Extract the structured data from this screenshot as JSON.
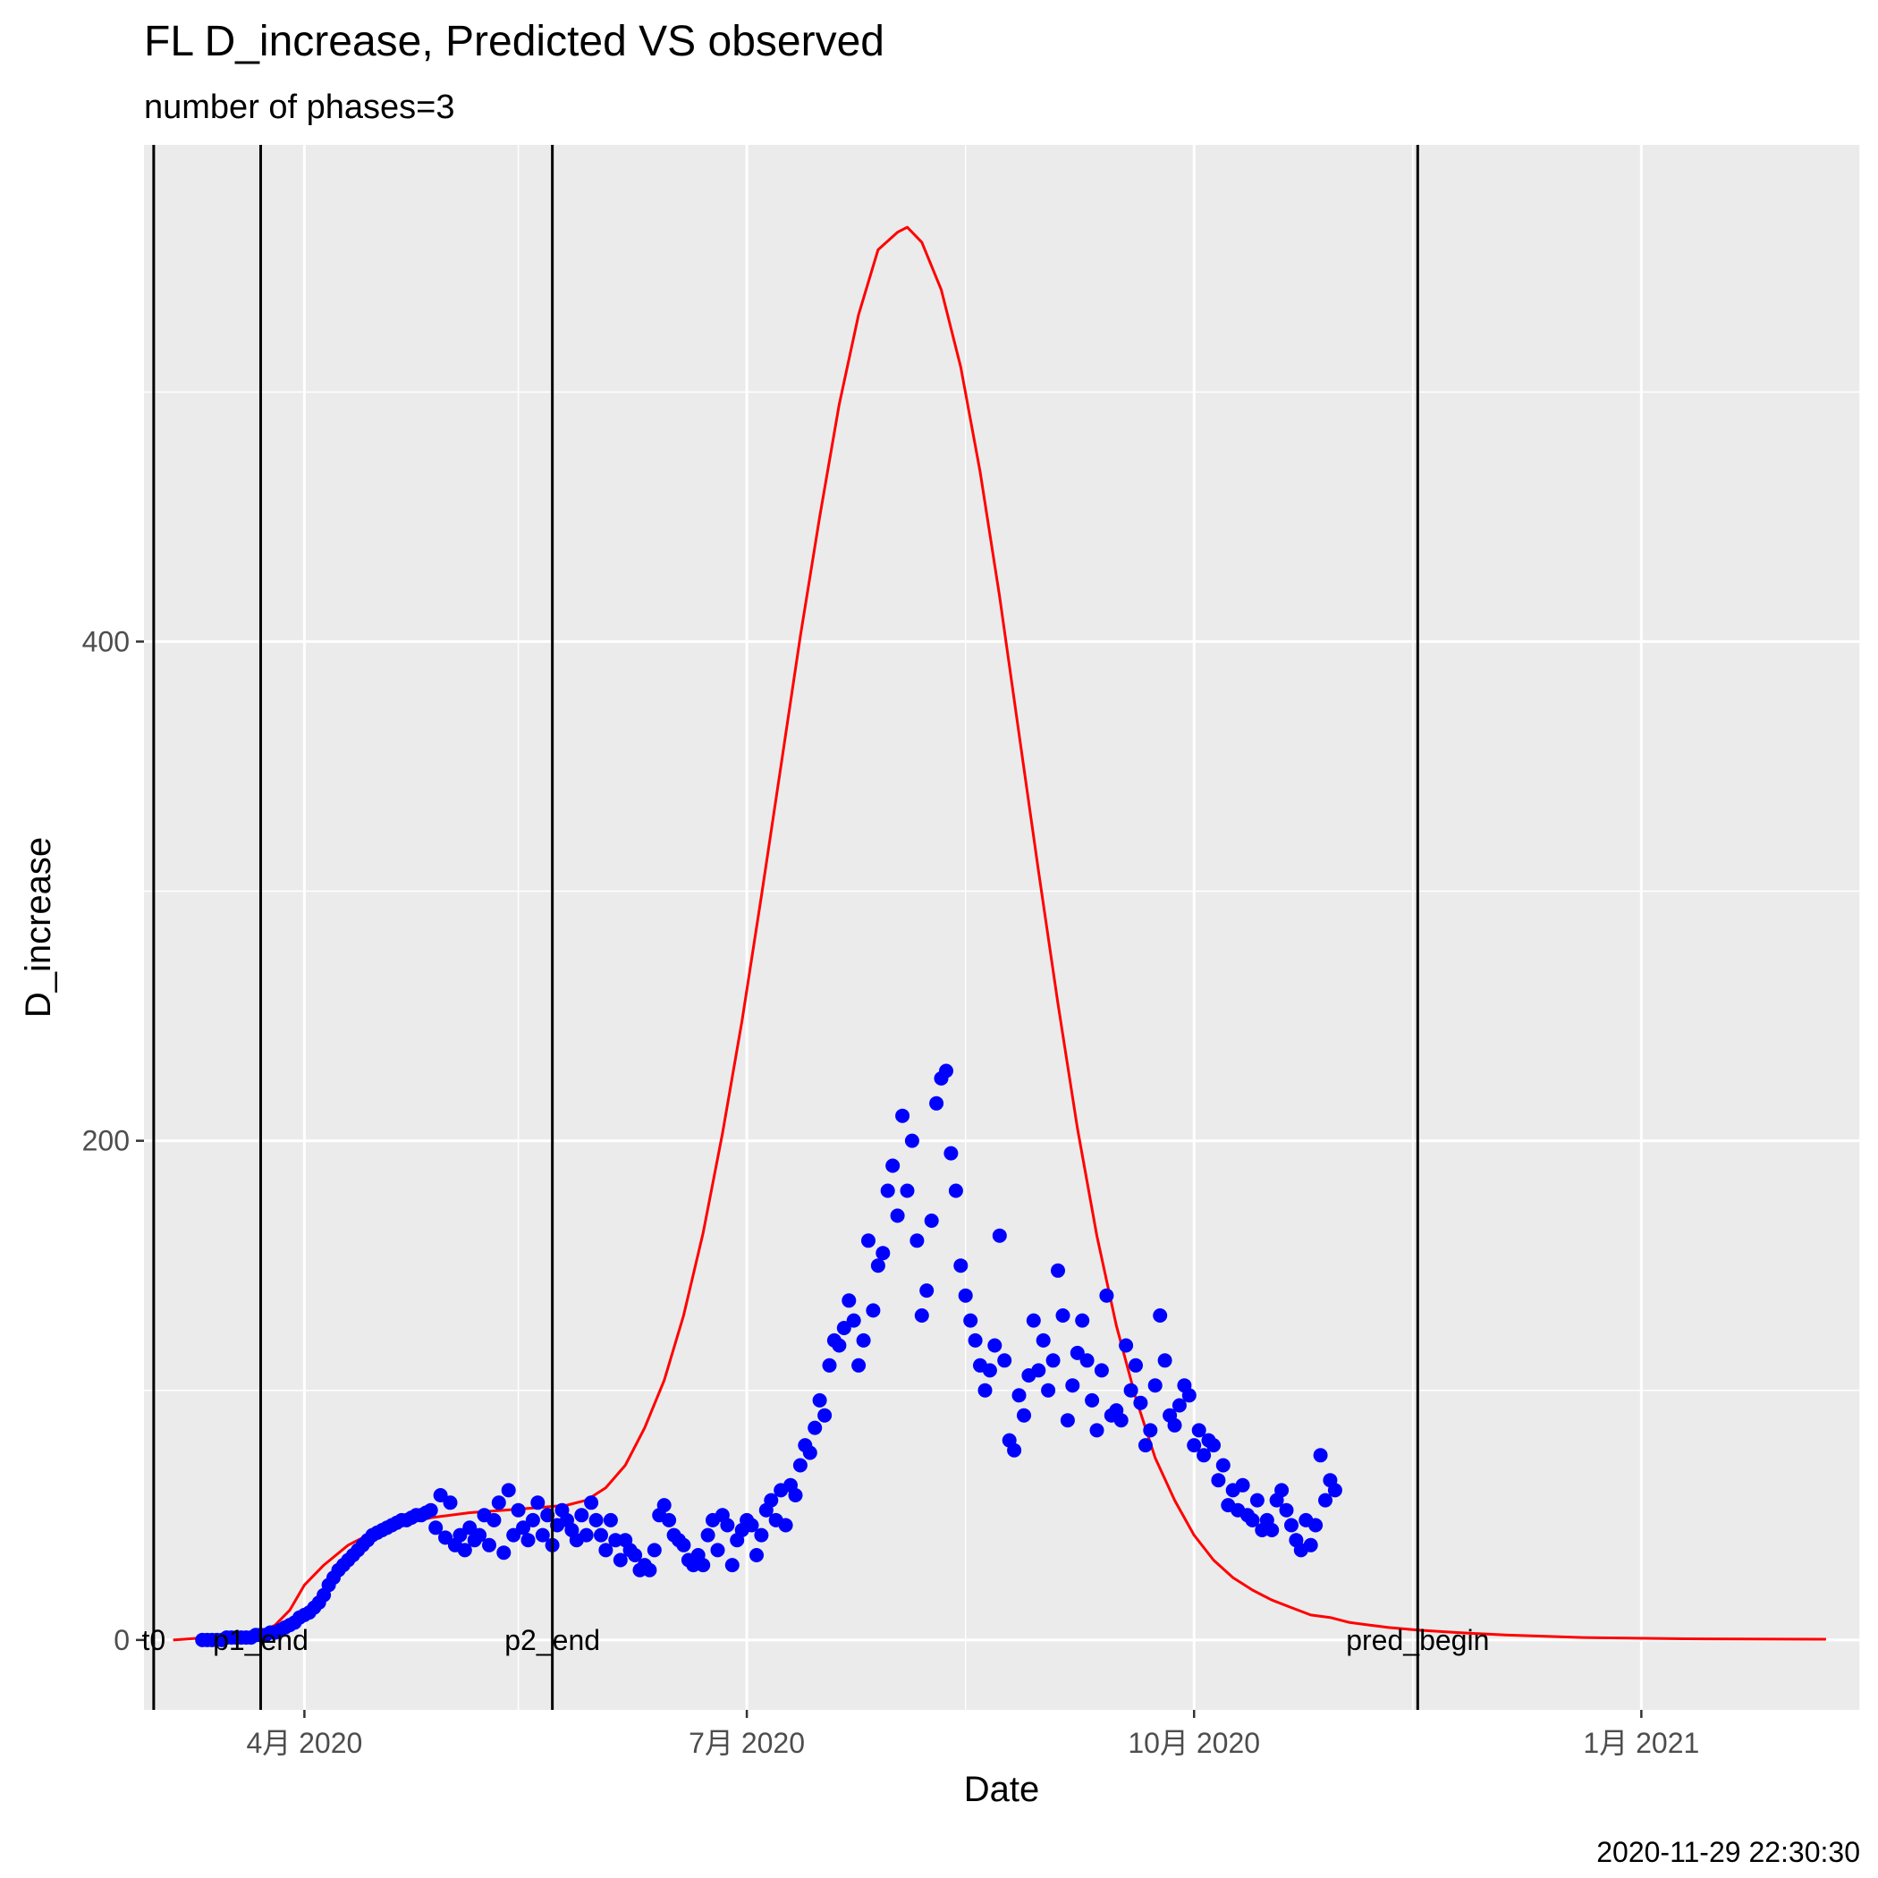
{
  "chart_data": {
    "type": "line",
    "title": "FL D_increase, Predicted VS observed",
    "subtitle": "number of phases=3",
    "xlabel": "Date",
    "ylabel": "D_increase",
    "caption": "2020-11-29 22:30:30",
    "x_axis": {
      "type": "date",
      "range": [
        "2020-02-28",
        "2021-02-15"
      ],
      "ticks": [
        {
          "date": "2020-04-01",
          "label": "4月 2020"
        },
        {
          "date": "2020-07-01",
          "label": "7月 2020"
        },
        {
          "date": "2020-10-01",
          "label": "10月 2020"
        },
        {
          "date": "2021-01-01",
          "label": "1月 2021"
        }
      ],
      "minor_ticks": [
        "2020-02-15",
        "2020-05-15",
        "2020-08-15",
        "2020-11-15",
        "2021-02-15"
      ]
    },
    "y_axis": {
      "range": [
        -28,
        599
      ],
      "ticks": [
        0,
        200,
        400
      ],
      "minor_ticks": [
        100,
        300,
        500
      ]
    },
    "grid": true,
    "vertical_lines": [
      {
        "date": "2020-03-01",
        "label": "t0"
      },
      {
        "date": "2020-03-23",
        "label": "p1_end"
      },
      {
        "date": "2020-05-22",
        "label": "p2_end"
      },
      {
        "date": "2020-11-16",
        "label": "pred_begin"
      }
    ],
    "series": [
      {
        "kind": "line",
        "color": "#ff0000",
        "points": [
          [
            "2020-03-05",
            0
          ],
          [
            "2020-03-12",
            1
          ],
          [
            "2020-03-19",
            2
          ],
          [
            "2020-03-23",
            3
          ],
          [
            "2020-03-26",
            6
          ],
          [
            "2020-03-29",
            12
          ],
          [
            "2020-04-01",
            22
          ],
          [
            "2020-04-05",
            30
          ],
          [
            "2020-04-10",
            38
          ],
          [
            "2020-04-15",
            43
          ],
          [
            "2020-04-20",
            46
          ],
          [
            "2020-04-27",
            49
          ],
          [
            "2020-05-05",
            51
          ],
          [
            "2020-05-12",
            52
          ],
          [
            "2020-05-19",
            53
          ],
          [
            "2020-05-25",
            54
          ],
          [
            "2020-05-29",
            56
          ],
          [
            "2020-06-02",
            61
          ],
          [
            "2020-06-06",
            70
          ],
          [
            "2020-06-10",
            85
          ],
          [
            "2020-06-14",
            104
          ],
          [
            "2020-06-18",
            130
          ],
          [
            "2020-06-22",
            163
          ],
          [
            "2020-06-26",
            203
          ],
          [
            "2020-06-30",
            248
          ],
          [
            "2020-07-04",
            298
          ],
          [
            "2020-07-08",
            350
          ],
          [
            "2020-07-12",
            402
          ],
          [
            "2020-07-16",
            450
          ],
          [
            "2020-07-20",
            495
          ],
          [
            "2020-07-24",
            531
          ],
          [
            "2020-07-28",
            557
          ],
          [
            "2020-08-01",
            564
          ],
          [
            "2020-08-03",
            566
          ],
          [
            "2020-08-06",
            560
          ],
          [
            "2020-08-10",
            541
          ],
          [
            "2020-08-14",
            510
          ],
          [
            "2020-08-18",
            468
          ],
          [
            "2020-08-22",
            418
          ],
          [
            "2020-08-26",
            363
          ],
          [
            "2020-08-30",
            308
          ],
          [
            "2020-09-03",
            255
          ],
          [
            "2020-09-07",
            205
          ],
          [
            "2020-09-11",
            162
          ],
          [
            "2020-09-15",
            126
          ],
          [
            "2020-09-19",
            97
          ],
          [
            "2020-09-23",
            73
          ],
          [
            "2020-09-27",
            56
          ],
          [
            "2020-10-01",
            42
          ],
          [
            "2020-10-05",
            32
          ],
          [
            "2020-10-09",
            25
          ],
          [
            "2020-10-13",
            20
          ],
          [
            "2020-10-17",
            16
          ],
          [
            "2020-10-21",
            13
          ],
          [
            "2020-10-25",
            10
          ],
          [
            "2020-10-29",
            9
          ],
          [
            "2020-11-02",
            7
          ],
          [
            "2020-11-06",
            6
          ],
          [
            "2020-11-10",
            5
          ],
          [
            "2020-11-16",
            4
          ],
          [
            "2020-11-24",
            3
          ],
          [
            "2020-12-04",
            2
          ],
          [
            "2020-12-20",
            1
          ],
          [
            "2021-01-10",
            0.5
          ],
          [
            "2021-02-08",
            0.3
          ]
        ]
      },
      {
        "kind": "scatter",
        "color": "#0000ff",
        "start_date": "2020-03-11",
        "values": [
          0,
          0,
          0,
          0,
          0,
          1,
          1,
          1,
          1,
          1,
          1,
          2,
          2,
          2,
          3,
          3,
          4,
          5,
          6,
          7,
          9,
          10,
          11,
          13,
          15,
          18,
          22,
          25,
          28,
          30,
          32,
          34,
          36,
          38,
          40,
          42,
          43,
          44,
          45,
          46,
          47,
          48,
          48,
          49,
          50,
          50,
          51,
          52,
          45,
          58,
          41,
          55,
          38,
          42,
          36,
          45,
          40,
          42,
          50,
          38,
          48,
          55,
          35,
          60,
          42,
          52,
          45,
          40,
          48,
          55,
          42,
          50,
          38,
          46,
          52,
          48,
          44,
          40,
          50,
          42,
          55,
          48,
          42,
          36,
          48,
          40,
          32,
          40,
          36,
          34,
          28,
          30,
          28,
          36,
          50,
          54,
          48,
          42,
          40,
          38,
          32,
          30,
          34,
          30,
          42,
          48,
          36,
          50,
          46,
          30,
          40,
          44,
          48,
          46,
          34,
          42,
          52,
          56,
          48,
          60,
          46,
          62,
          58,
          70,
          78,
          75,
          85,
          96,
          90,
          110,
          120,
          118,
          125,
          136,
          128,
          110,
          120,
          160,
          132,
          150,
          155,
          180,
          190,
          170,
          210,
          180,
          200,
          160,
          130,
          140,
          168,
          215,
          225,
          228,
          195,
          180,
          150,
          138,
          128,
          120,
          110,
          100,
          108,
          118,
          162,
          112,
          80,
          76,
          98,
          90,
          106,
          128,
          108,
          120,
          100,
          112,
          148,
          130,
          88,
          102,
          115,
          128,
          112,
          96,
          84,
          108,
          138,
          90,
          92,
          88,
          118,
          100,
          110,
          95,
          78,
          84,
          102,
          130,
          112,
          90,
          86,
          94,
          102,
          98,
          78,
          84,
          74,
          80,
          78,
          64,
          70,
          54,
          60,
          52,
          62,
          50,
          48,
          56,
          44,
          48,
          44,
          56,
          60,
          52,
          46,
          40,
          36,
          48,
          38,
          46,
          74,
          56,
          64,
          60
        ]
      }
    ]
  }
}
